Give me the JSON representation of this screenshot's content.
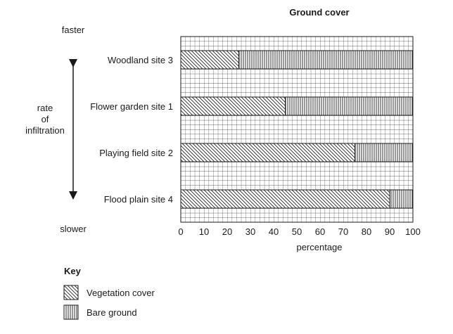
{
  "chart_data": {
    "type": "bar",
    "orientation": "horizontal",
    "stacked": true,
    "title": "Ground cover",
    "xlabel": "percentage",
    "ylabel": "rate\nof\ninfiltration",
    "arrow_top_label": "faster",
    "arrow_bottom_label": "slower",
    "xlim": [
      0,
      100
    ],
    "xticks": [
      0,
      10,
      20,
      30,
      40,
      50,
      60,
      70,
      80,
      90,
      100
    ],
    "grid": true,
    "categories": [
      "Woodland site 3",
      "Flower garden site 1",
      "Playing field site 2",
      "Flood plain site 4"
    ],
    "series": [
      {
        "name": "Vegetation cover",
        "values": [
          25,
          45,
          75,
          90
        ],
        "pattern": "diagonal-hatch"
      },
      {
        "name": "Bare ground",
        "values": [
          75,
          55,
          25,
          10
        ],
        "pattern": "vertical-hatch"
      }
    ],
    "legend": {
      "title": "Key",
      "placement": "bottom-left",
      "entries": [
        "Vegetation cover",
        "Bare ground"
      ]
    }
  }
}
